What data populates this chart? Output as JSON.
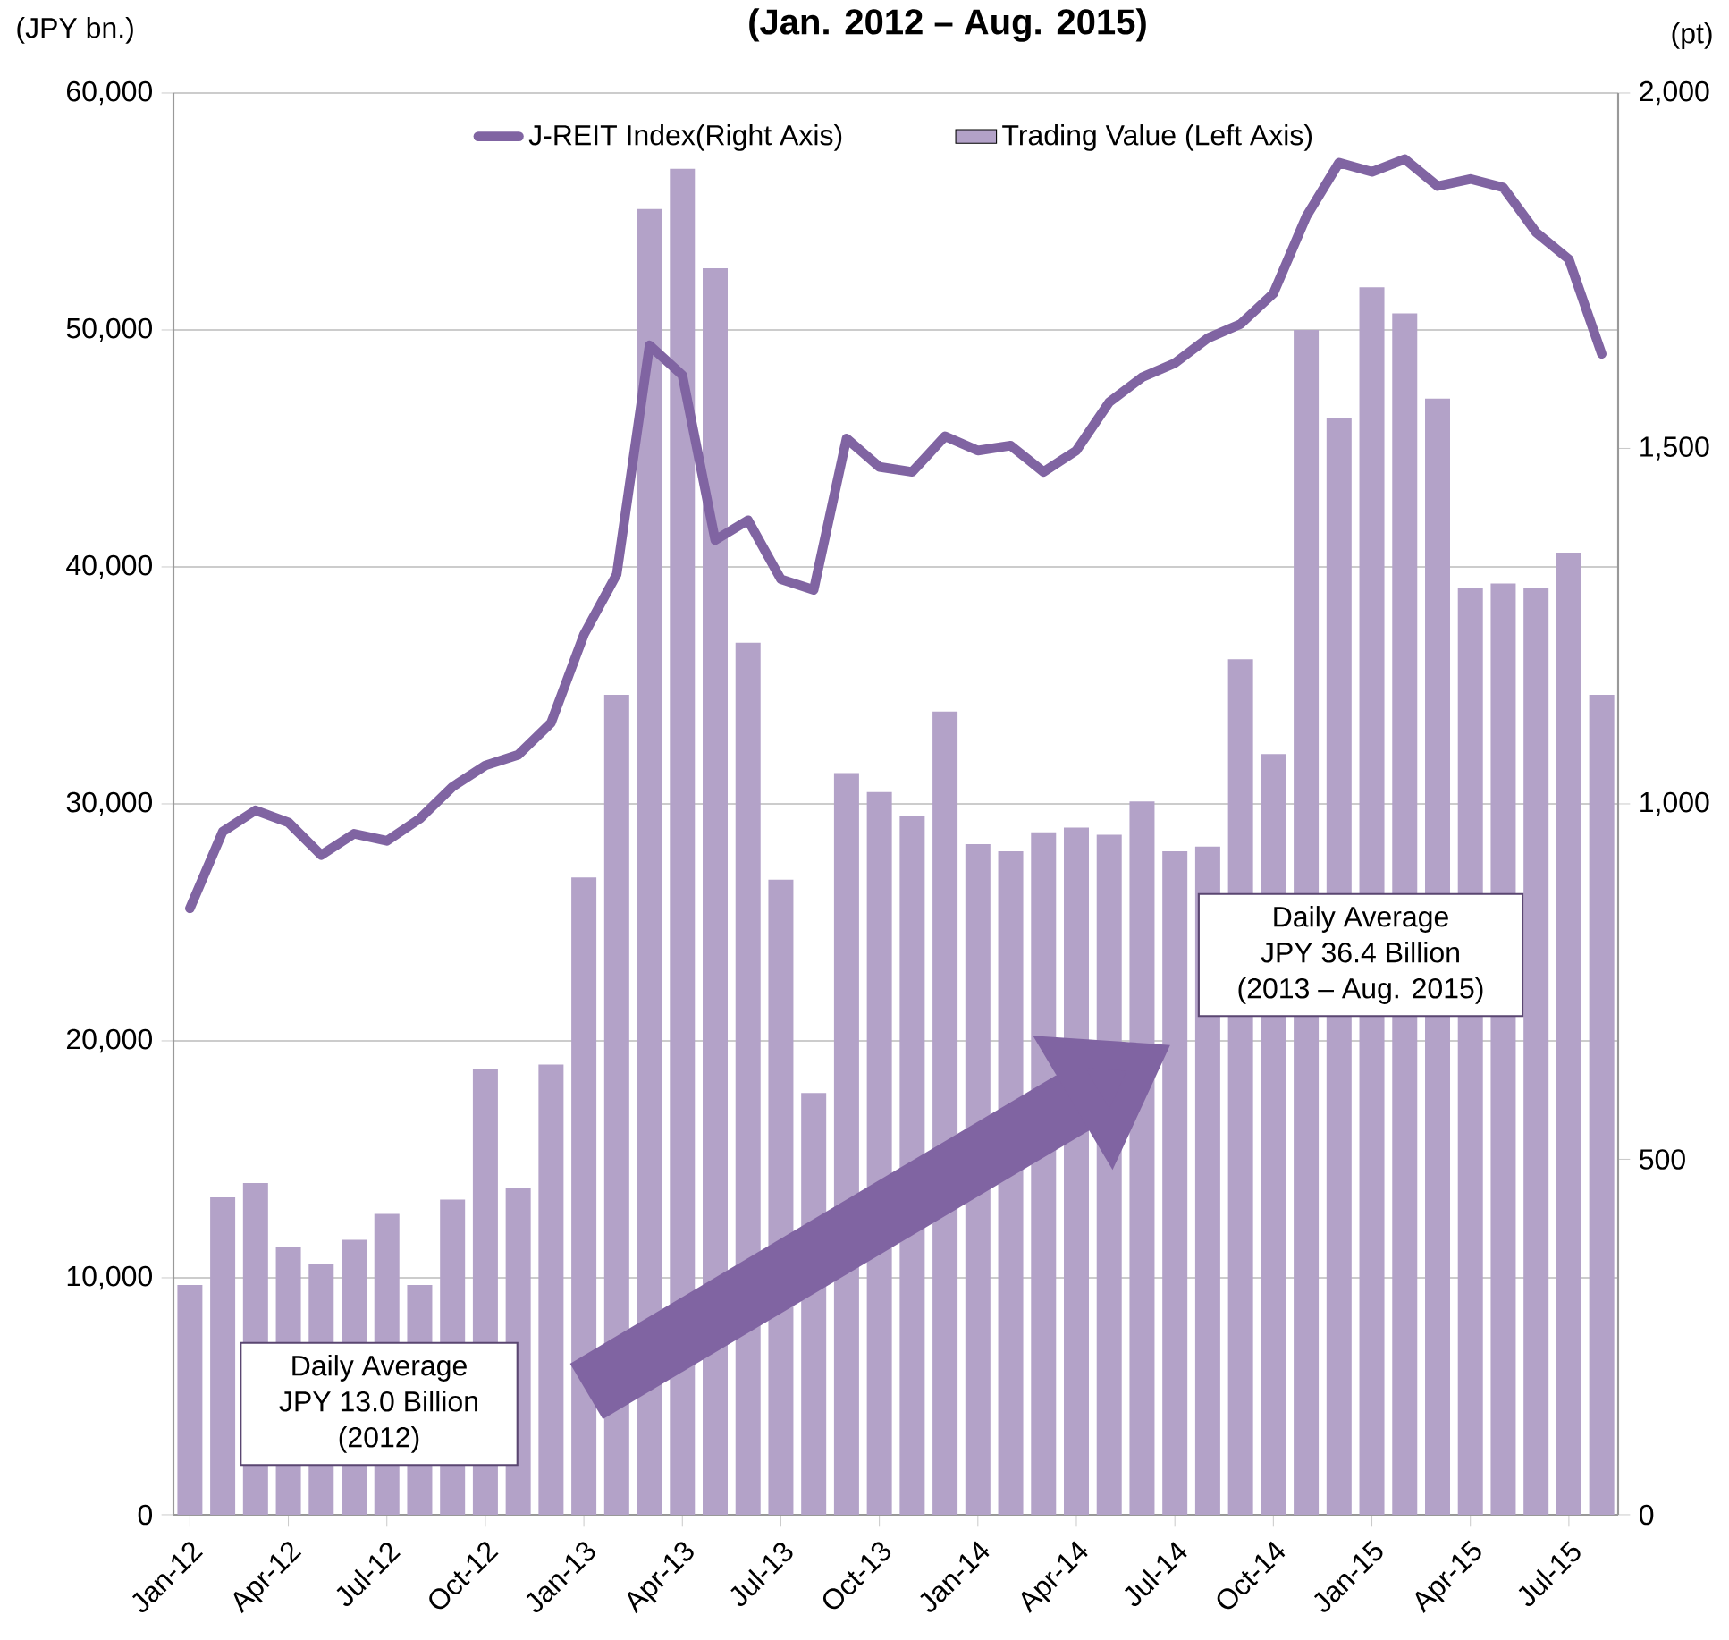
{
  "chart_data": {
    "type": "bar",
    "title": "(Jan. 2012 – Aug. 2015)",
    "ylabel": "(JPY bn.)",
    "y2label": "(pt)",
    "categories": [
      "Jan-12",
      null,
      null,
      "Apr-12",
      null,
      null,
      "Jul-12",
      null,
      null,
      "Oct-12",
      null,
      null,
      "Jan-13",
      null,
      null,
      "Apr-13",
      null,
      null,
      "Jul-13",
      null,
      null,
      "Oct-13",
      null,
      null,
      "Jan-14",
      null,
      null,
      "Apr-14",
      null,
      null,
      "Jul-14",
      null,
      null,
      "Oct-14",
      null,
      null,
      "Jan-15",
      null,
      null,
      "Apr-15",
      null,
      null,
      "Jul-15",
      null
    ],
    "series": [
      {
        "name": "J-REIT Index(Right Axis)",
        "type": "line",
        "axis": "y2",
        "color": "#8064a2",
        "values": [
          853,
          961,
          991,
          974,
          928,
          958,
          948,
          979,
          1024,
          1054,
          1069,
          1114,
          1238,
          1323,
          1645,
          1603,
          1371,
          1399,
          1316,
          1301,
          1514,
          1474,
          1467,
          1517,
          1497,
          1504,
          1467,
          1497,
          1565,
          1600,
          1620,
          1655,
          1675,
          1718,
          1826,
          1902,
          1889,
          1907,
          1869,
          1879,
          1867,
          1804,
          1766,
          1633
        ]
      },
      {
        "name": "Trading Value (Left Axis)",
        "type": "bar",
        "color": "#b3a2c8",
        "values": [
          9700,
          13400,
          14000,
          11300,
          10600,
          11600,
          12700,
          9700,
          13300,
          18800,
          13800,
          19000,
          26900,
          34600,
          55100,
          56800,
          52600,
          36800,
          26800,
          17800,
          31300,
          30500,
          29500,
          33900,
          28300,
          28000,
          28800,
          29000,
          28700,
          30100,
          28000,
          28200,
          36100,
          32100,
          50000,
          46300,
          51800,
          50700,
          47100,
          39100,
          39300,
          39100,
          40600,
          34600
        ]
      }
    ],
    "ylim": [
      0,
      60000
    ],
    "yticks": [
      0,
      {
        "value": 10000,
        "label": "10,000"
      },
      {
        "value": 20000,
        "label": "20,000"
      },
      {
        "value": 30000,
        "label": "30,000"
      },
      {
        "value": 40000,
        "label": "40,000"
      },
      {
        "value": 50000,
        "label": "50,000"
      },
      {
        "value": 60000,
        "label": "60,000"
      }
    ],
    "y2lim": [
      0,
      2000
    ],
    "y2ticks": [
      0,
      500,
      {
        "value": 1000,
        "label": "1,000"
      },
      {
        "value": 1500,
        "label": "1,500"
      },
      {
        "value": 2000,
        "label": "2,000"
      }
    ],
    "grid": "y",
    "legend": "top",
    "annotations": [
      "Daily Average",
      "JPY 13.0 Billion",
      "(2012)",
      "Daily Average",
      "JPY 36.4 Billion",
      "(2013 – Aug. 2015)"
    ]
  }
}
